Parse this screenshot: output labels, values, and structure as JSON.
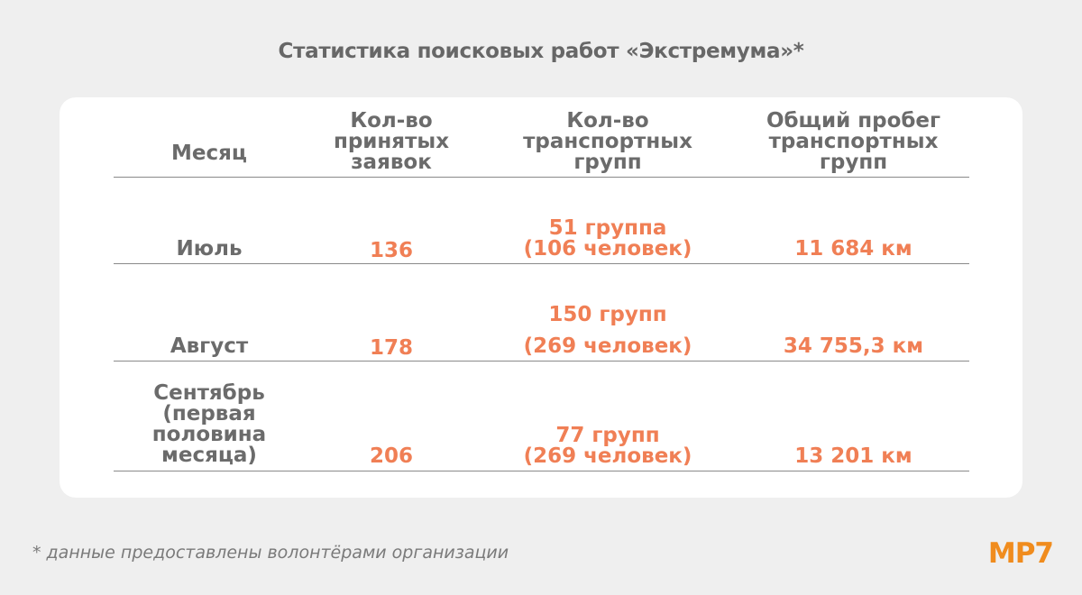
{
  "title": "Статистика поисковых работ «Экстремума»*",
  "table": {
    "headers": [
      [
        "Месяц"
      ],
      [
        "Кол-во",
        "принятых",
        "заявок"
      ],
      [
        "Кол-во",
        "транспортных",
        "групп"
      ],
      [
        "Общий пробег",
        "транспортных",
        "групп"
      ]
    ],
    "rows": [
      {
        "month": [
          "Июль"
        ],
        "requests": "136",
        "groups": [
          "51 группа",
          "(106 человек)"
        ],
        "mileage": "11 684 км"
      },
      {
        "month": [
          "Август"
        ],
        "requests": "178",
        "groups": [
          "150 групп",
          "(269 человек)"
        ],
        "mileage": "34 755,3 км"
      },
      {
        "month": [
          "Сентябрь",
          "(первая половина",
          "месяца)"
        ],
        "requests": "206",
        "groups": [
          "77 групп",
          "(269 человек)"
        ],
        "mileage": "13 201 км"
      }
    ]
  },
  "footnote": "* данные предоставлены волонтёрами организации",
  "logo": "МР7",
  "colors": {
    "background": "#efefef",
    "card": "#ffffff",
    "text_gray": "#6b6b6b",
    "accent_orange": "#f07f55",
    "logo_orange": "#f08c1e"
  }
}
